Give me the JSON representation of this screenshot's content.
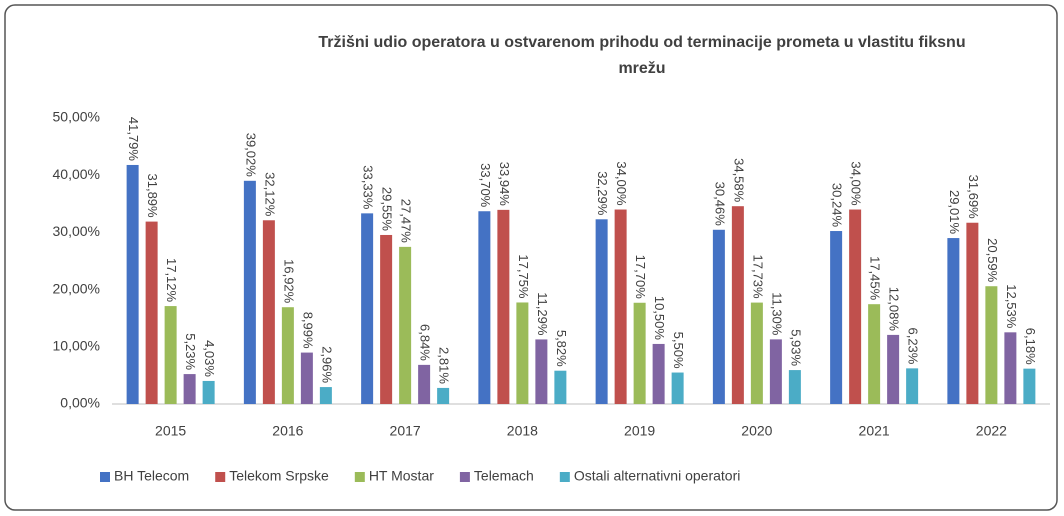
{
  "chart_data": {
    "type": "bar",
    "title": "Tržišni udio operatora u ostvarenom prihodu od terminacije prometa u vlastitu fiksnu mrežu",
    "categories": [
      "2015",
      "2016",
      "2017",
      "2018",
      "2019",
      "2020",
      "2021",
      "2022"
    ],
    "series": [
      {
        "name": "BH Telecom",
        "color": "#4472c4",
        "values": [
          41.79,
          39.02,
          33.33,
          33.7,
          32.29,
          30.46,
          30.24,
          29.01
        ],
        "value_labels": [
          "41,79%",
          "39,02%",
          "33,33%",
          "33,70%",
          "32,29%",
          "30,46%",
          "30,24%",
          "29,01%"
        ]
      },
      {
        "name": "Telekom Srpske",
        "color": "#c0504d",
        "values": [
          31.89,
          32.12,
          29.55,
          33.94,
          34.0,
          34.58,
          34.0,
          31.69
        ],
        "value_labels": [
          "31,89%",
          "32,12%",
          "29,55%",
          "33,94%",
          "34,00%",
          "34,58%",
          "34,00%",
          "31,69%"
        ]
      },
      {
        "name": "HT Mostar",
        "color": "#9bbb59",
        "values": [
          17.12,
          16.92,
          27.47,
          17.75,
          17.7,
          17.73,
          17.45,
          20.59
        ],
        "value_labels": [
          "17,12%",
          "16,92%",
          "27,47%",
          "17,75%",
          "17,70%",
          "17,73%",
          "17,45%",
          "20,59%"
        ]
      },
      {
        "name": "Telemach",
        "color": "#8064a2",
        "values": [
          5.23,
          8.99,
          6.84,
          11.29,
          10.5,
          11.3,
          12.08,
          12.53
        ],
        "value_labels": [
          "5,23%",
          "8,99%",
          "6,84%",
          "11,29%",
          "10,50%",
          "11,30%",
          "12,08%",
          "12,53%"
        ]
      },
      {
        "name": "Ostali alternativni operatori",
        "color": "#4bacc6",
        "values": [
          4.03,
          2.96,
          2.81,
          5.82,
          5.5,
          5.93,
          6.23,
          6.18
        ],
        "value_labels": [
          "4,03%",
          "2,96%",
          "2,81%",
          "5,82%",
          "5,50%",
          "5,93%",
          "6,23%",
          "6,18%"
        ]
      }
    ],
    "ylim": [
      0,
      50
    ],
    "yticks": [
      {
        "value": 0,
        "label": "0,00%"
      },
      {
        "value": 10,
        "label": "10,00%"
      },
      {
        "value": 20,
        "label": "20,00%"
      },
      {
        "value": 30,
        "label": "30,00%"
      },
      {
        "value": 40,
        "label": "40,00%"
      },
      {
        "value": 50,
        "label": "50,00%"
      }
    ],
    "grid": false
  }
}
